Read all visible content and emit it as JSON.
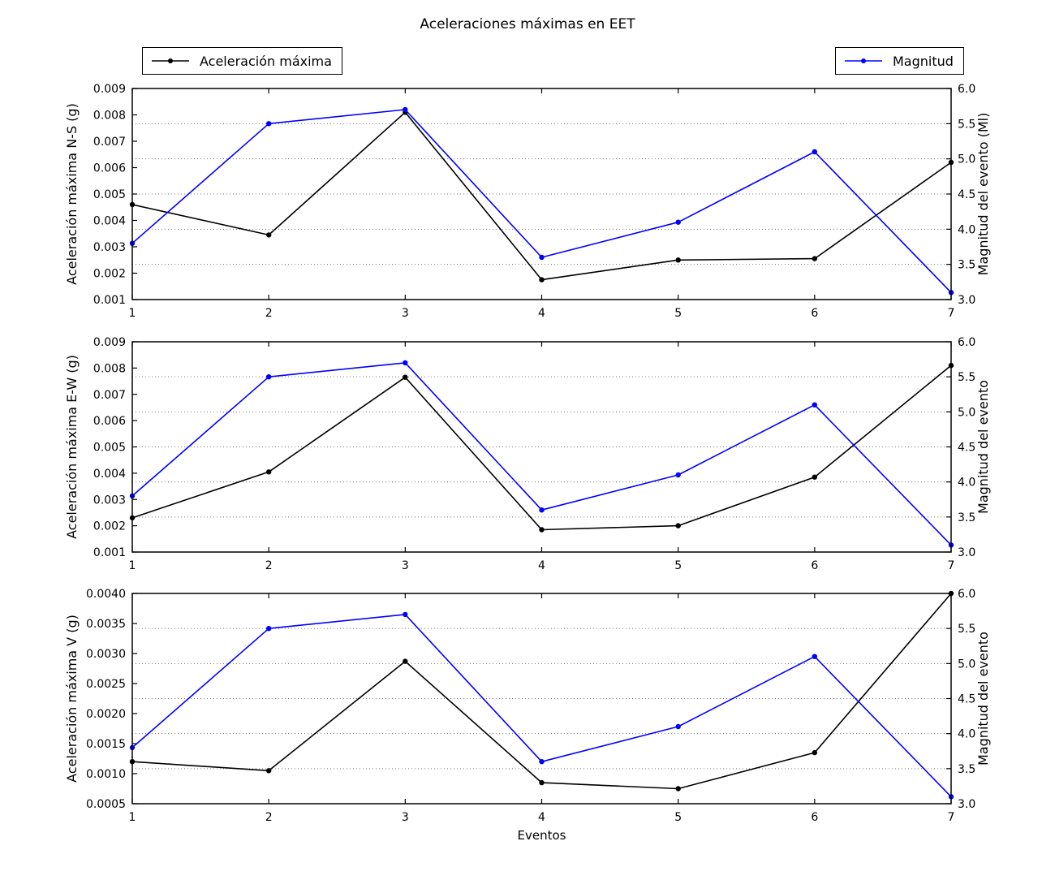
{
  "title": "Aceleraciones máximas en EET",
  "xlabel": "Eventos",
  "legends": [
    {
      "label": "Aceleración máxima",
      "color": "#000000"
    },
    {
      "label": "Magnitud",
      "color": "#0000ff"
    }
  ],
  "chart_data": [
    {
      "id": "ns",
      "type": "line",
      "x": [
        1,
        2,
        3,
        4,
        5,
        6,
        7
      ],
      "xticks": [
        "1",
        "2",
        "3",
        "4",
        "5",
        "6",
        "7"
      ],
      "ylabel_left": "Aceleración máxima N-S (g)",
      "ylim_left": [
        0.001,
        0.009
      ],
      "yticks_left": [
        "0.001",
        "0.002",
        "0.003",
        "0.004",
        "0.005",
        "0.006",
        "0.007",
        "0.008",
        "0.009"
      ],
      "ylabel_right": "Magnitud del evento (Ml)",
      "ylim_right": [
        3.0,
        6.0
      ],
      "yticks_right": [
        "3.0",
        "3.5",
        "4.0",
        "4.5",
        "5.0",
        "5.5",
        "6.0"
      ],
      "grid": "horizontal-dotted-at-right-ticks",
      "legend_position": "figure-top",
      "series": [
        {
          "name": "Aceleración máxima",
          "axis": "left",
          "color": "#000000",
          "values": [
            0.0046,
            0.00345,
            0.0081,
            0.00175,
            0.0025,
            0.00255,
            0.0062
          ]
        },
        {
          "name": "Magnitud",
          "axis": "right",
          "color": "#0000ff",
          "values": [
            3.8,
            5.5,
            5.7,
            3.6,
            4.1,
            5.1,
            3.1
          ]
        }
      ]
    },
    {
      "id": "ew",
      "type": "line",
      "x": [
        1,
        2,
        3,
        4,
        5,
        6,
        7
      ],
      "xticks": [
        "1",
        "2",
        "3",
        "4",
        "5",
        "6",
        "7"
      ],
      "ylabel_left": "Aceleración máxima E-W (g)",
      "ylim_left": [
        0.001,
        0.009
      ],
      "yticks_left": [
        "0.001",
        "0.002",
        "0.003",
        "0.004",
        "0.005",
        "0.006",
        "0.007",
        "0.008",
        "0.009"
      ],
      "ylabel_right": "Magnitud del evento",
      "ylim_right": [
        3.0,
        6.0
      ],
      "yticks_right": [
        "3.0",
        "3.5",
        "4.0",
        "4.5",
        "5.0",
        "5.5",
        "6.0"
      ],
      "grid": "horizontal-dotted-at-right-ticks",
      "series": [
        {
          "name": "Aceleración máxima",
          "axis": "left",
          "color": "#000000",
          "values": [
            0.0023,
            0.00405,
            0.00765,
            0.00185,
            0.002,
            0.00385,
            0.0081
          ]
        },
        {
          "name": "Magnitud",
          "axis": "right",
          "color": "#0000ff",
          "values": [
            3.8,
            5.5,
            5.7,
            3.6,
            4.1,
            5.1,
            3.1
          ]
        }
      ]
    },
    {
      "id": "v",
      "type": "line",
      "x": [
        1,
        2,
        3,
        4,
        5,
        6,
        7
      ],
      "xticks": [
        "1",
        "2",
        "3",
        "4",
        "5",
        "6",
        "7"
      ],
      "xlabel": "Eventos",
      "ylabel_left": "Aceleración máxima V (g)",
      "ylim_left": [
        0.0005,
        0.004
      ],
      "yticks_left": [
        "0.0005",
        "0.0010",
        "0.0015",
        "0.0020",
        "0.0025",
        "0.0030",
        "0.0035",
        "0.0040"
      ],
      "ylabel_right": "Magnitud del evento",
      "ylim_right": [
        3.0,
        6.0
      ],
      "yticks_right": [
        "3.0",
        "3.5",
        "4.0",
        "4.5",
        "5.0",
        "5.5",
        "6.0"
      ],
      "grid": "horizontal-dotted-at-right-ticks",
      "series": [
        {
          "name": "Aceleración máxima",
          "axis": "left",
          "color": "#000000",
          "values": [
            0.0012,
            0.00105,
            0.00287,
            0.00085,
            0.00075,
            0.00135,
            0.004
          ]
        },
        {
          "name": "Magnitud",
          "axis": "right",
          "color": "#0000ff",
          "values": [
            3.8,
            5.5,
            5.7,
            3.6,
            4.1,
            5.1,
            3.1
          ]
        }
      ]
    }
  ]
}
